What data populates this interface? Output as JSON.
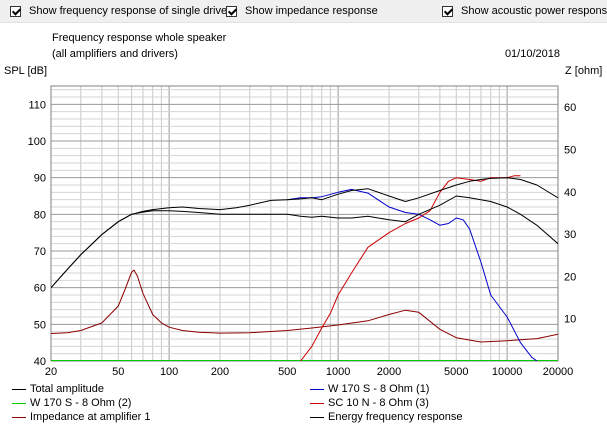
{
  "toolbar": {
    "checkboxes": [
      {
        "label": "Show frequency response of single drive",
        "checked": true
      },
      {
        "label": "Show impedance response",
        "checked": true
      },
      {
        "label": "Show acoustic power response",
        "checked": true
      }
    ]
  },
  "chart_data": {
    "type": "line",
    "title": "Frequency response whole speaker",
    "subtitle": "(all amplifiers and drivers)",
    "date": "01/10/2018",
    "xlabel": "",
    "ylabel": "SPL [dB]",
    "y2label": "Z [ohm]",
    "x_scale": "log",
    "xlim": [
      20,
      20000
    ],
    "ylim": [
      40,
      115
    ],
    "y2lim": [
      0,
      65
    ],
    "x_tick_labels": [
      "20",
      "50",
      "100",
      "200",
      "500",
      "1000",
      "2000",
      "5000",
      "10000",
      "20000"
    ],
    "x_tick_values": [
      20,
      50,
      100,
      200,
      500,
      1000,
      2000,
      5000,
      10000,
      20000
    ],
    "y_tick_values": [
      40,
      50,
      60,
      70,
      80,
      90,
      100,
      110
    ],
    "y2_tick_values": [
      0,
      10,
      20,
      30,
      40,
      50,
      60
    ],
    "grid": true,
    "series": [
      {
        "name": "Total amplitude",
        "color": "#000000",
        "axis": "left",
        "x": [
          20,
          25,
          30,
          40,
          50,
          60,
          70,
          80,
          100,
          120,
          150,
          200,
          250,
          300,
          400,
          500,
          600,
          700,
          800,
          1000,
          1200,
          1500,
          2000,
          2500,
          3000,
          4000,
          5000,
          6000,
          7000,
          8000,
          10000,
          12000,
          15000,
          20000
        ],
        "y": [
          60,
          65,
          69,
          74.5,
          78,
          80,
          80.8,
          81.3,
          81.8,
          82,
          81.6,
          81.3,
          81.8,
          82.5,
          83.8,
          84,
          84.2,
          84.5,
          84,
          85.5,
          86.5,
          87,
          85,
          83.5,
          84.5,
          86.5,
          88,
          89,
          89.5,
          89.8,
          90,
          89.5,
          88,
          84.5
        ]
      },
      {
        "name": "W 170 S - 8 Ohm (2)",
        "color": "#00cc00",
        "axis": "left",
        "x": [
          20,
          20000
        ],
        "y": [
          40,
          40
        ]
      },
      {
        "name": "Impedance at amplifier 1",
        "color": "#8b0000",
        "axis": "right",
        "x": [
          20,
          25,
          30,
          40,
          50,
          55,
          60,
          62,
          65,
          70,
          80,
          90,
          100,
          120,
          150,
          200,
          300,
          500,
          700,
          1000,
          1500,
          2000,
          2500,
          3000,
          4000,
          5000,
          7000,
          10000,
          15000,
          20000
        ],
        "y": [
          6.5,
          6.7,
          7.2,
          9,
          13,
          17,
          21,
          21.5,
          20,
          16,
          11,
          9,
          8,
          7.2,
          6.8,
          6.6,
          6.7,
          7.2,
          7.8,
          8.5,
          9.5,
          11,
          12,
          11.5,
          7.5,
          5.5,
          4.5,
          4.8,
          5.3,
          6.3
        ]
      },
      {
        "name": "W 170 S - 8 Ohm (1)",
        "color": "#0000cc",
        "axis": "left",
        "x": [
          500,
          600,
          700,
          800,
          1000,
          1200,
          1500,
          2000,
          2500,
          3000,
          3500,
          4000,
          4500,
          5000,
          5500,
          6000,
          7000,
          8000,
          10000,
          12000,
          14000,
          15000
        ],
        "y": [
          84,
          84.5,
          84.5,
          84.8,
          86,
          86.8,
          85.8,
          82,
          80.5,
          80,
          78.5,
          77,
          77.5,
          79,
          78.5,
          76,
          67,
          58,
          52,
          45,
          41,
          40
        ]
      },
      {
        "name": "SC 10 N - 8 Ohm (3)",
        "color": "#cc0000",
        "axis": "left",
        "x": [
          600,
          700,
          800,
          900,
          1000,
          1200,
          1500,
          2000,
          2500,
          3000,
          3500,
          4000,
          4500,
          5000,
          6000,
          7000,
          8000,
          9000,
          10000,
          11000,
          12000
        ],
        "y": [
          40,
          44,
          49,
          53,
          58,
          64,
          71,
          75,
          77.5,
          79,
          81,
          86,
          89,
          90,
          89.5,
          89,
          90,
          90,
          90,
          90.5,
          90.5
        ]
      },
      {
        "name": "Energy frequency response",
        "color": "#000000",
        "axis": "left",
        "x": [
          20,
          25,
          30,
          40,
          50,
          60,
          70,
          80,
          100,
          120,
          150,
          200,
          300,
          500,
          600,
          700,
          800,
          1000,
          1200,
          1500,
          2000,
          2500,
          3000,
          4000,
          5000,
          6000,
          7000,
          8000,
          10000,
          12000,
          15000,
          20000
        ],
        "y": [
          60,
          65,
          69,
          74.5,
          78,
          80,
          80.6,
          81,
          81,
          80.8,
          80.5,
          80,
          80,
          80,
          79.5,
          79.2,
          79.5,
          79,
          79,
          79.5,
          78.5,
          78,
          80,
          82.5,
          85,
          84.5,
          84,
          83.5,
          82,
          80,
          77,
          72
        ]
      }
    ]
  }
}
